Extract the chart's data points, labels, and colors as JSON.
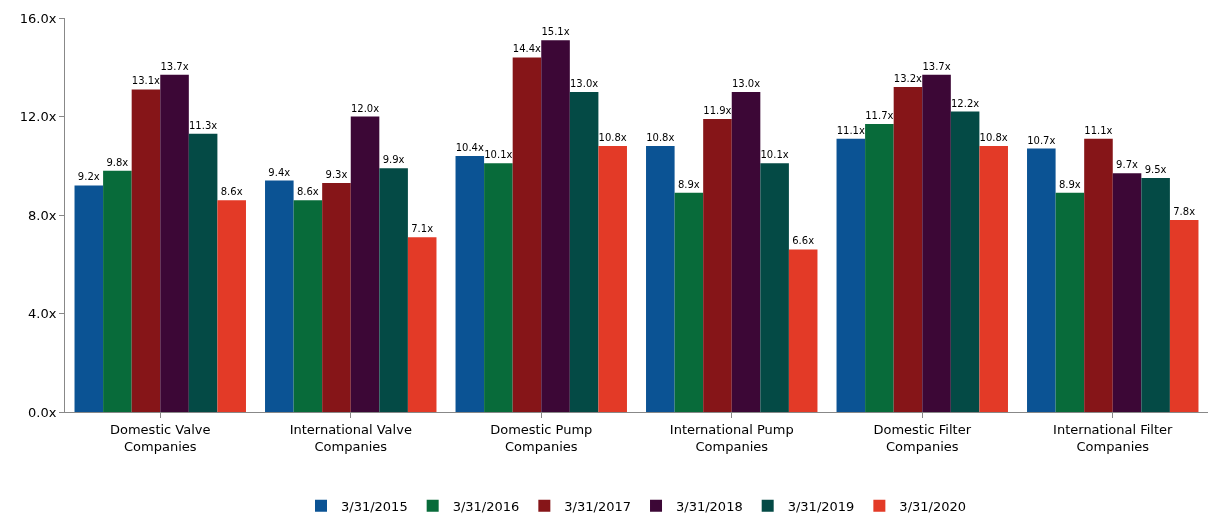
{
  "chart_data": {
    "type": "bar",
    "categories": [
      "Domestic Valve Companies",
      "International Valve Companies",
      "Domestic Pump Companies",
      "International Pump Companies",
      "Domestic Filter Companies",
      "International Filter Companies"
    ],
    "series": [
      {
        "name": "3/31/2015",
        "color": "#0b5394",
        "values": [
          9.2,
          9.4,
          10.4,
          10.8,
          11.1,
          10.7
        ],
        "value_labels": [
          "9.2x",
          "9.4x",
          "10.4x",
          "10.8x",
          "11.1x",
          "10.7x"
        ]
      },
      {
        "name": "3/31/2016",
        "color": "#086b3a",
        "values": [
          9.8,
          8.6,
          10.1,
          8.9,
          11.7,
          8.9
        ],
        "value_labels": [
          "9.8x",
          "8.6x",
          "10.1x",
          "8.9x",
          "11.7x",
          "8.9x"
        ]
      },
      {
        "name": "3/31/2017",
        "color": "#861518",
        "values": [
          13.1,
          9.3,
          14.4,
          11.9,
          13.2,
          11.1
        ],
        "value_labels": [
          "13.1x",
          "9.3x",
          "14.4x",
          "11.9x",
          "13.2x",
          "11.1x"
        ]
      },
      {
        "name": "3/31/2018",
        "color": "#3c0736",
        "values": [
          13.7,
          12.0,
          15.1,
          13.0,
          13.7,
          9.7
        ],
        "value_labels": [
          "13.7x",
          "12.0x",
          "15.1x",
          "13.0x",
          "13.7x",
          "9.7x"
        ]
      },
      {
        "name": "3/31/2019",
        "color": "#044a45",
        "values": [
          11.3,
          9.9,
          13.0,
          10.1,
          12.2,
          9.5
        ],
        "value_labels": [
          "11.3x",
          "9.9x",
          "13.0x",
          "10.1x",
          "12.2x",
          "9.5x"
        ]
      },
      {
        "name": "3/31/2020",
        "color": "#e33a27",
        "values": [
          8.6,
          7.1,
          10.8,
          6.6,
          10.8,
          7.8
        ],
        "value_labels": [
          "8.6x",
          "7.1x",
          "10.8x",
          "6.6x",
          "10.8x",
          "7.8x"
        ]
      }
    ],
    "ylim": [
      0,
      16
    ],
    "yticks": [
      {
        "value": 0,
        "label": "0.0x"
      },
      {
        "value": 4,
        "label": "4.0x"
      },
      {
        "value": 8,
        "label": "8.0x"
      },
      {
        "value": 12,
        "label": "12.0x"
      },
      {
        "value": 16,
        "label": "16.0x"
      }
    ],
    "grid": false,
    "legend": "bottom"
  }
}
